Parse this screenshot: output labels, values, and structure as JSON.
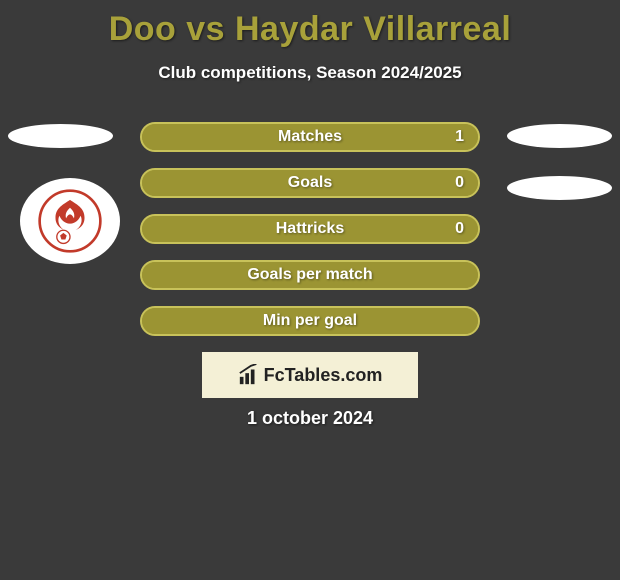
{
  "title": "Doo vs Haydar Villarreal",
  "subtitle": "Club competitions, Season 2024/2025",
  "date": "1 october 2024",
  "title_color": "#a8a13a",
  "background_color": "#3a3a3a",
  "logo_text": "FcTables.com",
  "logo_card_bg": "#f4f0d6",
  "logo_text_color": "#222222",
  "club_badge_color": "#c23a2a",
  "bars": [
    {
      "label": "Matches",
      "left_value": null,
      "right_value": "1",
      "left_fill_pct": 0,
      "right_fill_pct": 100,
      "bar_bg": "#9b9433",
      "right_fill_color": "#9b9433",
      "left_fill_color": "#9b9433",
      "border_color": "#c8c25a"
    },
    {
      "label": "Goals",
      "left_value": null,
      "right_value": "0",
      "left_fill_pct": 0,
      "right_fill_pct": 100,
      "bar_bg": "#9b9433",
      "right_fill_color": "#9b9433",
      "left_fill_color": "#9b9433",
      "border_color": "#c8c25a"
    },
    {
      "label": "Hattricks",
      "left_value": null,
      "right_value": "0",
      "left_fill_pct": 0,
      "right_fill_pct": 100,
      "bar_bg": "#9b9433",
      "right_fill_color": "#9b9433",
      "left_fill_color": "#9b9433",
      "border_color": "#c8c25a"
    },
    {
      "label": "Goals per match",
      "left_value": null,
      "right_value": null,
      "left_fill_pct": 50,
      "right_fill_pct": 50,
      "bar_bg": "#9b9433",
      "right_fill_color": "#9b9433",
      "left_fill_color": "#9b9433",
      "border_color": "#c8c25a"
    },
    {
      "label": "Min per goal",
      "left_value": null,
      "right_value": null,
      "left_fill_pct": 50,
      "right_fill_pct": 50,
      "bar_bg": "#9b9433",
      "right_fill_color": "#9b9433",
      "left_fill_color": "#9b9433",
      "border_color": "#c8c25a"
    }
  ]
}
